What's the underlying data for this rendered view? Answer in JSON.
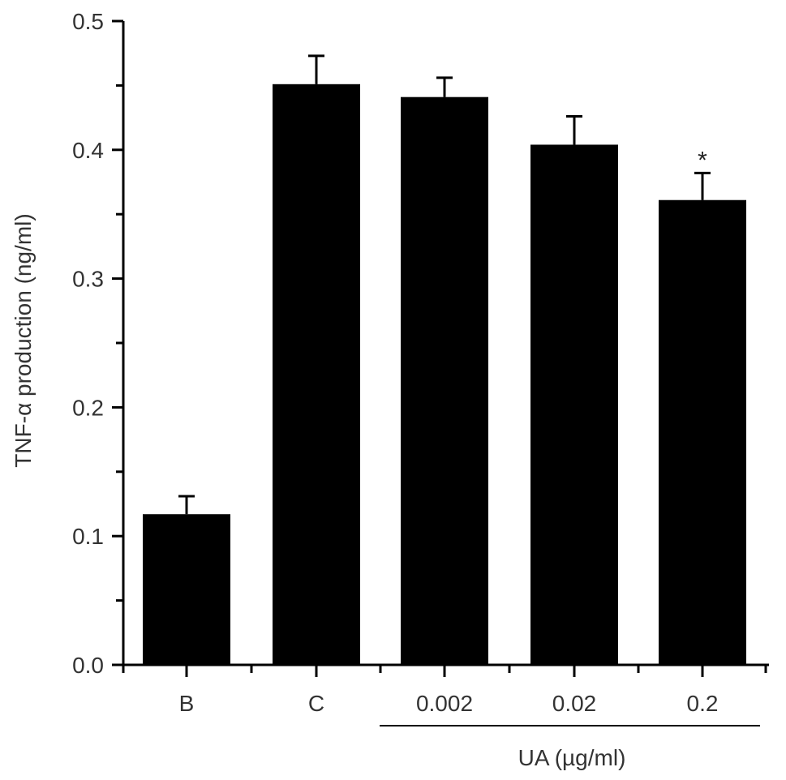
{
  "chart_data": {
    "type": "bar",
    "categories": [
      "B",
      "C",
      "0.002",
      "0.02",
      "0.2"
    ],
    "values": [
      0.117,
      0.451,
      0.441,
      0.404,
      0.361
    ],
    "errors": [
      0.014,
      0.022,
      0.015,
      0.022,
      0.021
    ],
    "significance": [
      "",
      "",
      "",
      "",
      "*"
    ],
    "ylabel": "TNF-α production (ng/ml)",
    "ylim": [
      0,
      0.5
    ],
    "yticks": [
      "0.0",
      "0.1",
      "0.2",
      "0.3",
      "0.4",
      "0.5"
    ],
    "group_label": "UA (µg/ml)",
    "group_categories": [
      "0.002",
      "0.02",
      "0.2"
    ],
    "bar_color": "#000000",
    "grid": false
  }
}
